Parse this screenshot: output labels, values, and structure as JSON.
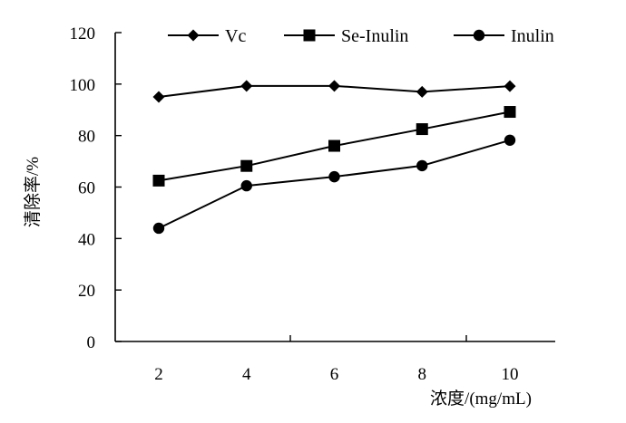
{
  "chart_data": {
    "type": "line",
    "x": [
      2,
      4,
      6,
      8,
      10
    ],
    "series": [
      {
        "name": "Vc",
        "marker": "diamond",
        "values": [
          95,
          99.3,
          99.3,
          97,
          99.2
        ]
      },
      {
        "name": "Se-Inulin",
        "marker": "square",
        "values": [
          62.5,
          68.2,
          76,
          82.5,
          89.2
        ]
      },
      {
        "name": "Inulin",
        "marker": "circle",
        "values": [
          44,
          60.5,
          64,
          68.3,
          78.2
        ]
      }
    ],
    "xlabel": "浓度/(mg/mL)",
    "ylabel": "清除率/%",
    "yticks": [
      0,
      20,
      40,
      60,
      80,
      100,
      120
    ],
    "xticks": [
      2,
      4,
      6,
      8,
      10
    ],
    "ylim": [
      0,
      120
    ],
    "grid": false,
    "legend_position": "top",
    "line_color": "#000000"
  }
}
